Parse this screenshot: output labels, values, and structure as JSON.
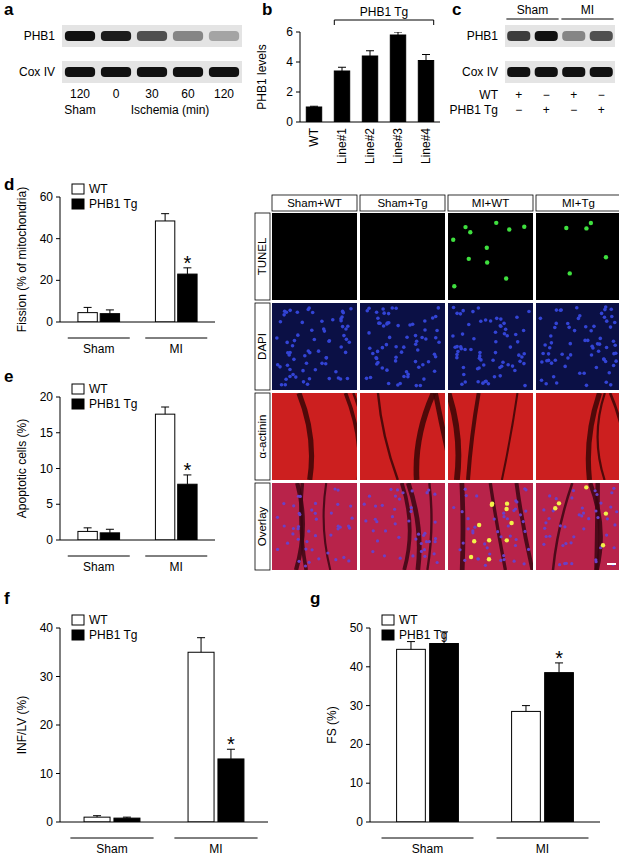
{
  "blots": [
    {
      "panel": "a",
      "rows": [
        {
          "label": "PHB1",
          "intensity": [
            1,
            0.95,
            0.7,
            0.45,
            0.3
          ]
        },
        {
          "label": "Cox IV",
          "intensity": [
            1,
            1,
            1,
            1,
            1
          ]
        }
      ],
      "lane_labels": [
        "120",
        "0",
        "30",
        "60",
        "120"
      ],
      "groups": [
        {
          "label": "Sham",
          "span": 1
        },
        {
          "label": "Ischemia (min)",
          "span": 4
        }
      ]
    },
    {
      "panel": "c",
      "rows": [
        {
          "label": "PHB1",
          "intensity": [
            0.8,
            1,
            0.45,
            0.7
          ]
        },
        {
          "label": "Cox IV",
          "intensity": [
            1,
            1,
            1,
            1
          ]
        }
      ],
      "groups": [
        {
          "label": "Sham",
          "span": 2
        },
        {
          "label": "MI",
          "span": 2
        }
      ],
      "conditions": [
        {
          "label": "WT",
          "signs": [
            "+",
            "−",
            "+",
            "−"
          ]
        },
        {
          "label": "PHB1 Tg",
          "signs": [
            "−",
            "+",
            "−",
            "+"
          ]
        }
      ]
    }
  ],
  "chart_data": [
    {
      "type": "bar",
      "panel": "b",
      "y_label": "PHB1 levels",
      "categories": [
        "WT",
        "Line#1",
        "Line#2",
        "Line#3",
        "Line#4"
      ],
      "values": [
        1,
        3.4,
        4.4,
        5.8,
        4.1
      ],
      "errors": [
        0.05,
        0.25,
        0.35,
        0.2,
        0.4
      ],
      "color": "#000000",
      "ylim": [
        0,
        6
      ],
      "yticks": [
        0,
        2,
        4,
        6
      ],
      "bracket": {
        "text": "PHB1 Tg",
        "from": "Line#1",
        "to": "Line#4"
      }
    },
    {
      "type": "bar",
      "panel": "d",
      "y_label": "Fission (% of mitochondria)",
      "categories": [
        "Sham",
        "MI"
      ],
      "series": [
        {
          "name": "WT",
          "color": "#ffffff",
          "values": [
            4.5,
            48.5
          ],
          "errors": [
            2.5,
            3.5
          ],
          "significance": [
            null,
            null
          ]
        },
        {
          "name": "PHB1 Tg",
          "color": "#000000",
          "values": [
            4,
            23
          ],
          "errors": [
            1.8,
            3
          ],
          "significance": [
            null,
            "*"
          ]
        }
      ],
      "ylim": [
        0,
        60
      ],
      "yticks": [
        0,
        20,
        40,
        60
      ],
      "legend": "upper left"
    },
    {
      "type": "bar",
      "panel": "e",
      "y_label": "Apoptotic cells (%)",
      "categories": [
        "Sham",
        "MI"
      ],
      "series": [
        {
          "name": "WT",
          "color": "#ffffff",
          "values": [
            1.2,
            17.6
          ],
          "errors": [
            0.5,
            1
          ],
          "significance": [
            null,
            null
          ]
        },
        {
          "name": "PHB1 Tg",
          "color": "#000000",
          "values": [
            1,
            7.8
          ],
          "errors": [
            0.5,
            1.3
          ],
          "significance": [
            null,
            "*"
          ]
        }
      ],
      "ylim": [
        0,
        20
      ],
      "yticks": [
        0,
        5,
        10,
        15,
        20
      ],
      "legend": "upper left"
    },
    {
      "type": "bar",
      "panel": "f",
      "y_label": "INF/LV (%)",
      "categories": [
        "Sham",
        "MI"
      ],
      "series": [
        {
          "name": "WT",
          "color": "#ffffff",
          "values": [
            1,
            35
          ],
          "errors": [
            0.3,
            3
          ],
          "significance": [
            null,
            null
          ]
        },
        {
          "name": "PHB1 Tg",
          "color": "#000000",
          "values": [
            0.8,
            13
          ],
          "errors": [
            0.2,
            2
          ],
          "significance": [
            null,
            "*"
          ]
        }
      ],
      "ylim": [
        0,
        40
      ],
      "yticks": [
        0,
        10,
        20,
        30,
        40
      ],
      "legend": "upper left"
    },
    {
      "type": "bar",
      "panel": "g",
      "y_label": "FS (%)",
      "categories": [
        "Sham",
        "MI"
      ],
      "series": [
        {
          "name": "WT",
          "color": "#ffffff",
          "values": [
            44.5,
            28.5
          ],
          "errors": [
            2,
            1.5
          ],
          "significance": [
            null,
            null
          ]
        },
        {
          "name": "PHB1 Tg",
          "color": "#000000",
          "values": [
            46,
            38.5
          ],
          "errors": [
            3,
            2.5
          ],
          "significance": [
            null,
            "*"
          ]
        }
      ],
      "ylim": [
        0,
        50
      ],
      "yticks": [
        0,
        10,
        20,
        30,
        40,
        50
      ],
      "legend": "upper left"
    }
  ],
  "micrographs": {
    "columns": [
      "Sham+WT",
      "Sham+Tg",
      "MI+WT",
      "MI+Tg"
    ],
    "rows": [
      "TUNEL",
      "DAPI",
      "α-actinin",
      "Overlay"
    ],
    "positive_cells": [
      0,
      0,
      11,
      5
    ]
  }
}
